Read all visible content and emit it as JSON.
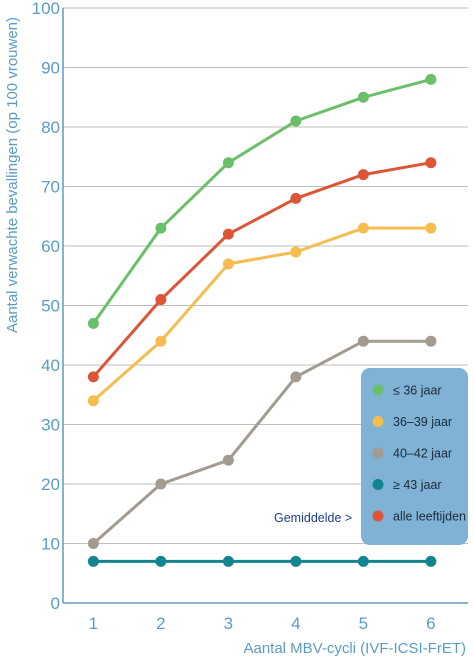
{
  "chart_data": {
    "type": "line",
    "title": "",
    "xlabel": "Aantal MBV-cycli (IVF-ICSI-FrET)",
    "ylabel": "Aantal verwachte bevallingen (op 100 vrouwen)",
    "x": [
      1,
      2,
      3,
      4,
      5,
      6
    ],
    "xlim": [
      0.55,
      6.55
    ],
    "ylim": [
      0,
      100
    ],
    "yticks": [
      0,
      10,
      20,
      30,
      40,
      50,
      60,
      70,
      80,
      90,
      100
    ],
    "grid": "horizontal",
    "legend_position": "bottom-right",
    "series": [
      {
        "name": "≤ 36 jaar",
        "color": "#6abf69",
        "values": [
          47,
          63,
          74,
          81,
          85,
          88
        ]
      },
      {
        "name": "36–39 jaar",
        "color": "#f5bd4f",
        "values": [
          34,
          44,
          57,
          59,
          63,
          63
        ]
      },
      {
        "name": "40–42 jaar",
        "color": "#a39a90",
        "values": [
          10,
          20,
          24,
          38,
          44,
          44
        ]
      },
      {
        "name": "≥ 43 jaar",
        "color": "#13858f",
        "values": [
          7,
          7,
          7,
          7,
          7,
          7
        ]
      },
      {
        "name": "alle leeftijden",
        "color": "#dd5537",
        "values": [
          38,
          51,
          62,
          68,
          72,
          74
        ]
      }
    ],
    "annotation": "Gemiddelde >"
  },
  "colors": {
    "axis": "#5b9cc5",
    "grid": "#bfbfbf",
    "legend_bg": "#7fb2d4"
  }
}
